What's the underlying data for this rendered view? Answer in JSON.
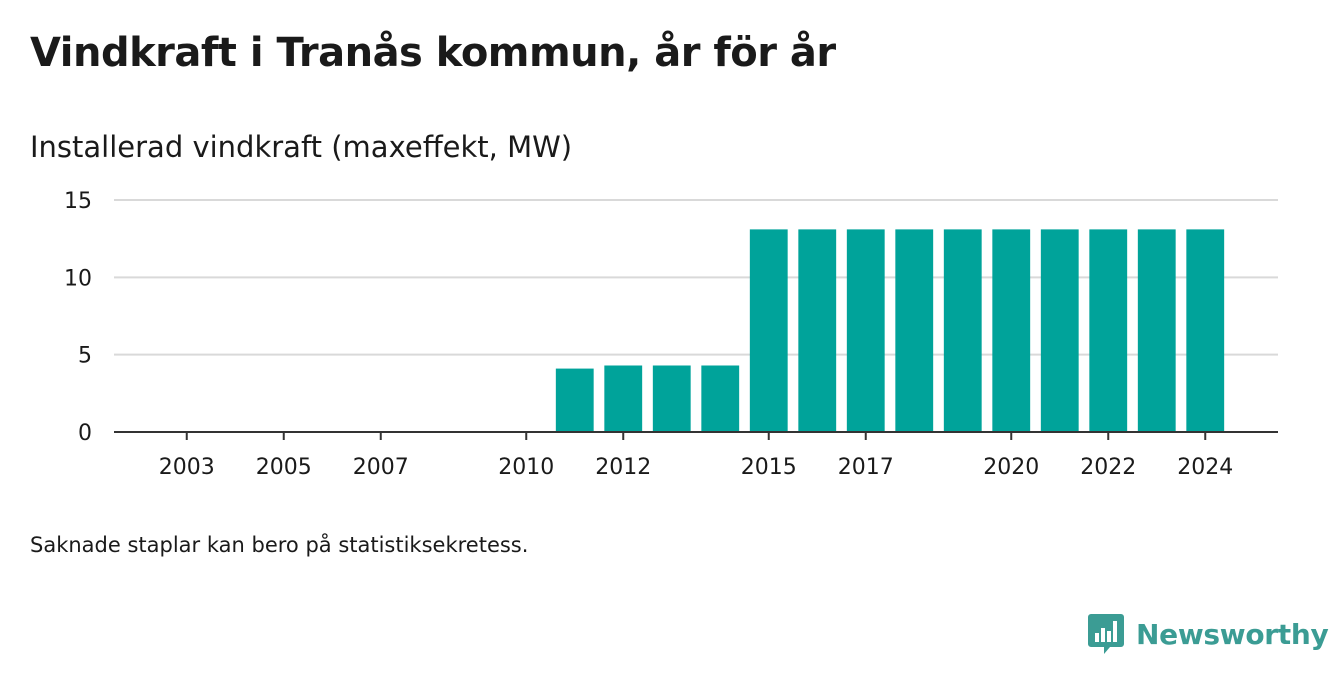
{
  "title": "Vindkraft i Tranås kommun, år för år",
  "subtitle": "Installerad vindkraft (maxeffekt, MW)",
  "footnote": "Saknade staplar kan bero på statistiksekretess.",
  "brand": {
    "name": "Newsworthy",
    "icon": "newsworthy-logo-icon",
    "color": "#3b9c94"
  },
  "chart_data": {
    "type": "bar",
    "title": "Vindkraft i Tranås kommun, år för år",
    "subtitle": "Installerad vindkraft (maxeffekt, MW)",
    "xlabel": "",
    "ylabel": "",
    "bar_color": "#00a39a",
    "grid": true,
    "ylim": [
      0,
      15
    ],
    "y_ticks": [
      0,
      5,
      10,
      15
    ],
    "x_range": [
      2001.5,
      2025.5
    ],
    "x_ticks": [
      2003,
      2005,
      2007,
      2010,
      2012,
      2015,
      2017,
      2020,
      2022,
      2024
    ],
    "categories": [
      "2011",
      "2012",
      "2013",
      "2014",
      "2015",
      "2016",
      "2017",
      "2018",
      "2019",
      "2020",
      "2021",
      "2022",
      "2023",
      "2024"
    ],
    "x": [
      2011,
      2012,
      2013,
      2014,
      2015,
      2016,
      2017,
      2018,
      2019,
      2020,
      2021,
      2022,
      2023,
      2024
    ],
    "values": [
      4.1,
      4.3,
      4.3,
      4.3,
      13.1,
      13.1,
      13.1,
      13.1,
      13.1,
      13.1,
      13.1,
      13.1,
      13.1,
      13.1
    ]
  }
}
